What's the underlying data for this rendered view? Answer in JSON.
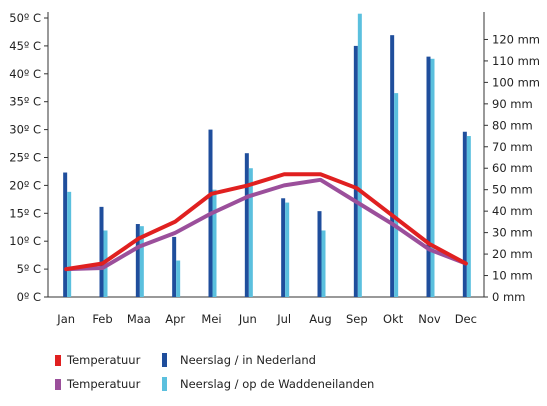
{
  "chart_data": {
    "type": "bar",
    "categories": [
      "Jan",
      "Feb",
      "Maa",
      "Apr",
      "Mei",
      "Jun",
      "Jul",
      "Aug",
      "Sep",
      "Okt",
      "Nov",
      "Dec"
    ],
    "left_axis": {
      "ticks": [
        0,
        5,
        10,
        15,
        20,
        25,
        30,
        35,
        40,
        45,
        50
      ],
      "tick_labels": [
        "0º C",
        "5º C",
        "10º C",
        "15º C",
        "20º C",
        "25º C",
        "30º C",
        "35º C",
        "40º C",
        "45º C",
        "50º C"
      ],
      "ylim": [
        0,
        50
      ]
    },
    "right_axis": {
      "ticks": [
        0,
        10,
        20,
        30,
        40,
        50,
        60,
        70,
        80,
        90,
        100,
        110,
        120
      ],
      "tick_labels": [
        "0 mm",
        "10 mm",
        "20 mm",
        "30 mm",
        "40 mm",
        "50 mm",
        "60 mm",
        "70 mm",
        "80 mm",
        "90 mm",
        "100 mm",
        "110 mm",
        "120 mm"
      ],
      "ylim": [
        0,
        130
      ]
    },
    "bar_series": [
      {
        "name": "Neerslag / in Nederland",
        "color": "#1f4e9c",
        "axis": "right",
        "values": [
          58,
          42,
          34,
          28,
          78,
          67,
          46,
          40,
          117,
          122,
          112,
          77
        ]
      },
      {
        "name": "Neerslag / op de Waddeneilanden",
        "color": "#5bc0de",
        "axis": "right",
        "values": [
          49,
          31,
          33,
          17,
          50,
          60,
          44,
          31,
          132,
          95,
          111,
          75
        ]
      }
    ],
    "line_series": [
      {
        "name": "Temperatuur",
        "color": "#e02020",
        "axis": "left",
        "values": [
          5,
          6,
          10.5,
          13.5,
          18.5,
          20,
          22,
          22,
          19.5,
          14.5,
          9.5,
          6
        ]
      },
      {
        "name": "Temperatuur",
        "color": "#9b4f9b",
        "axis": "left",
        "values": [
          5,
          5.2,
          9,
          11.5,
          15,
          18,
          20,
          21,
          17,
          13,
          8.5,
          6
        ]
      }
    ],
    "grid": false,
    "legend_position": "bottom"
  }
}
